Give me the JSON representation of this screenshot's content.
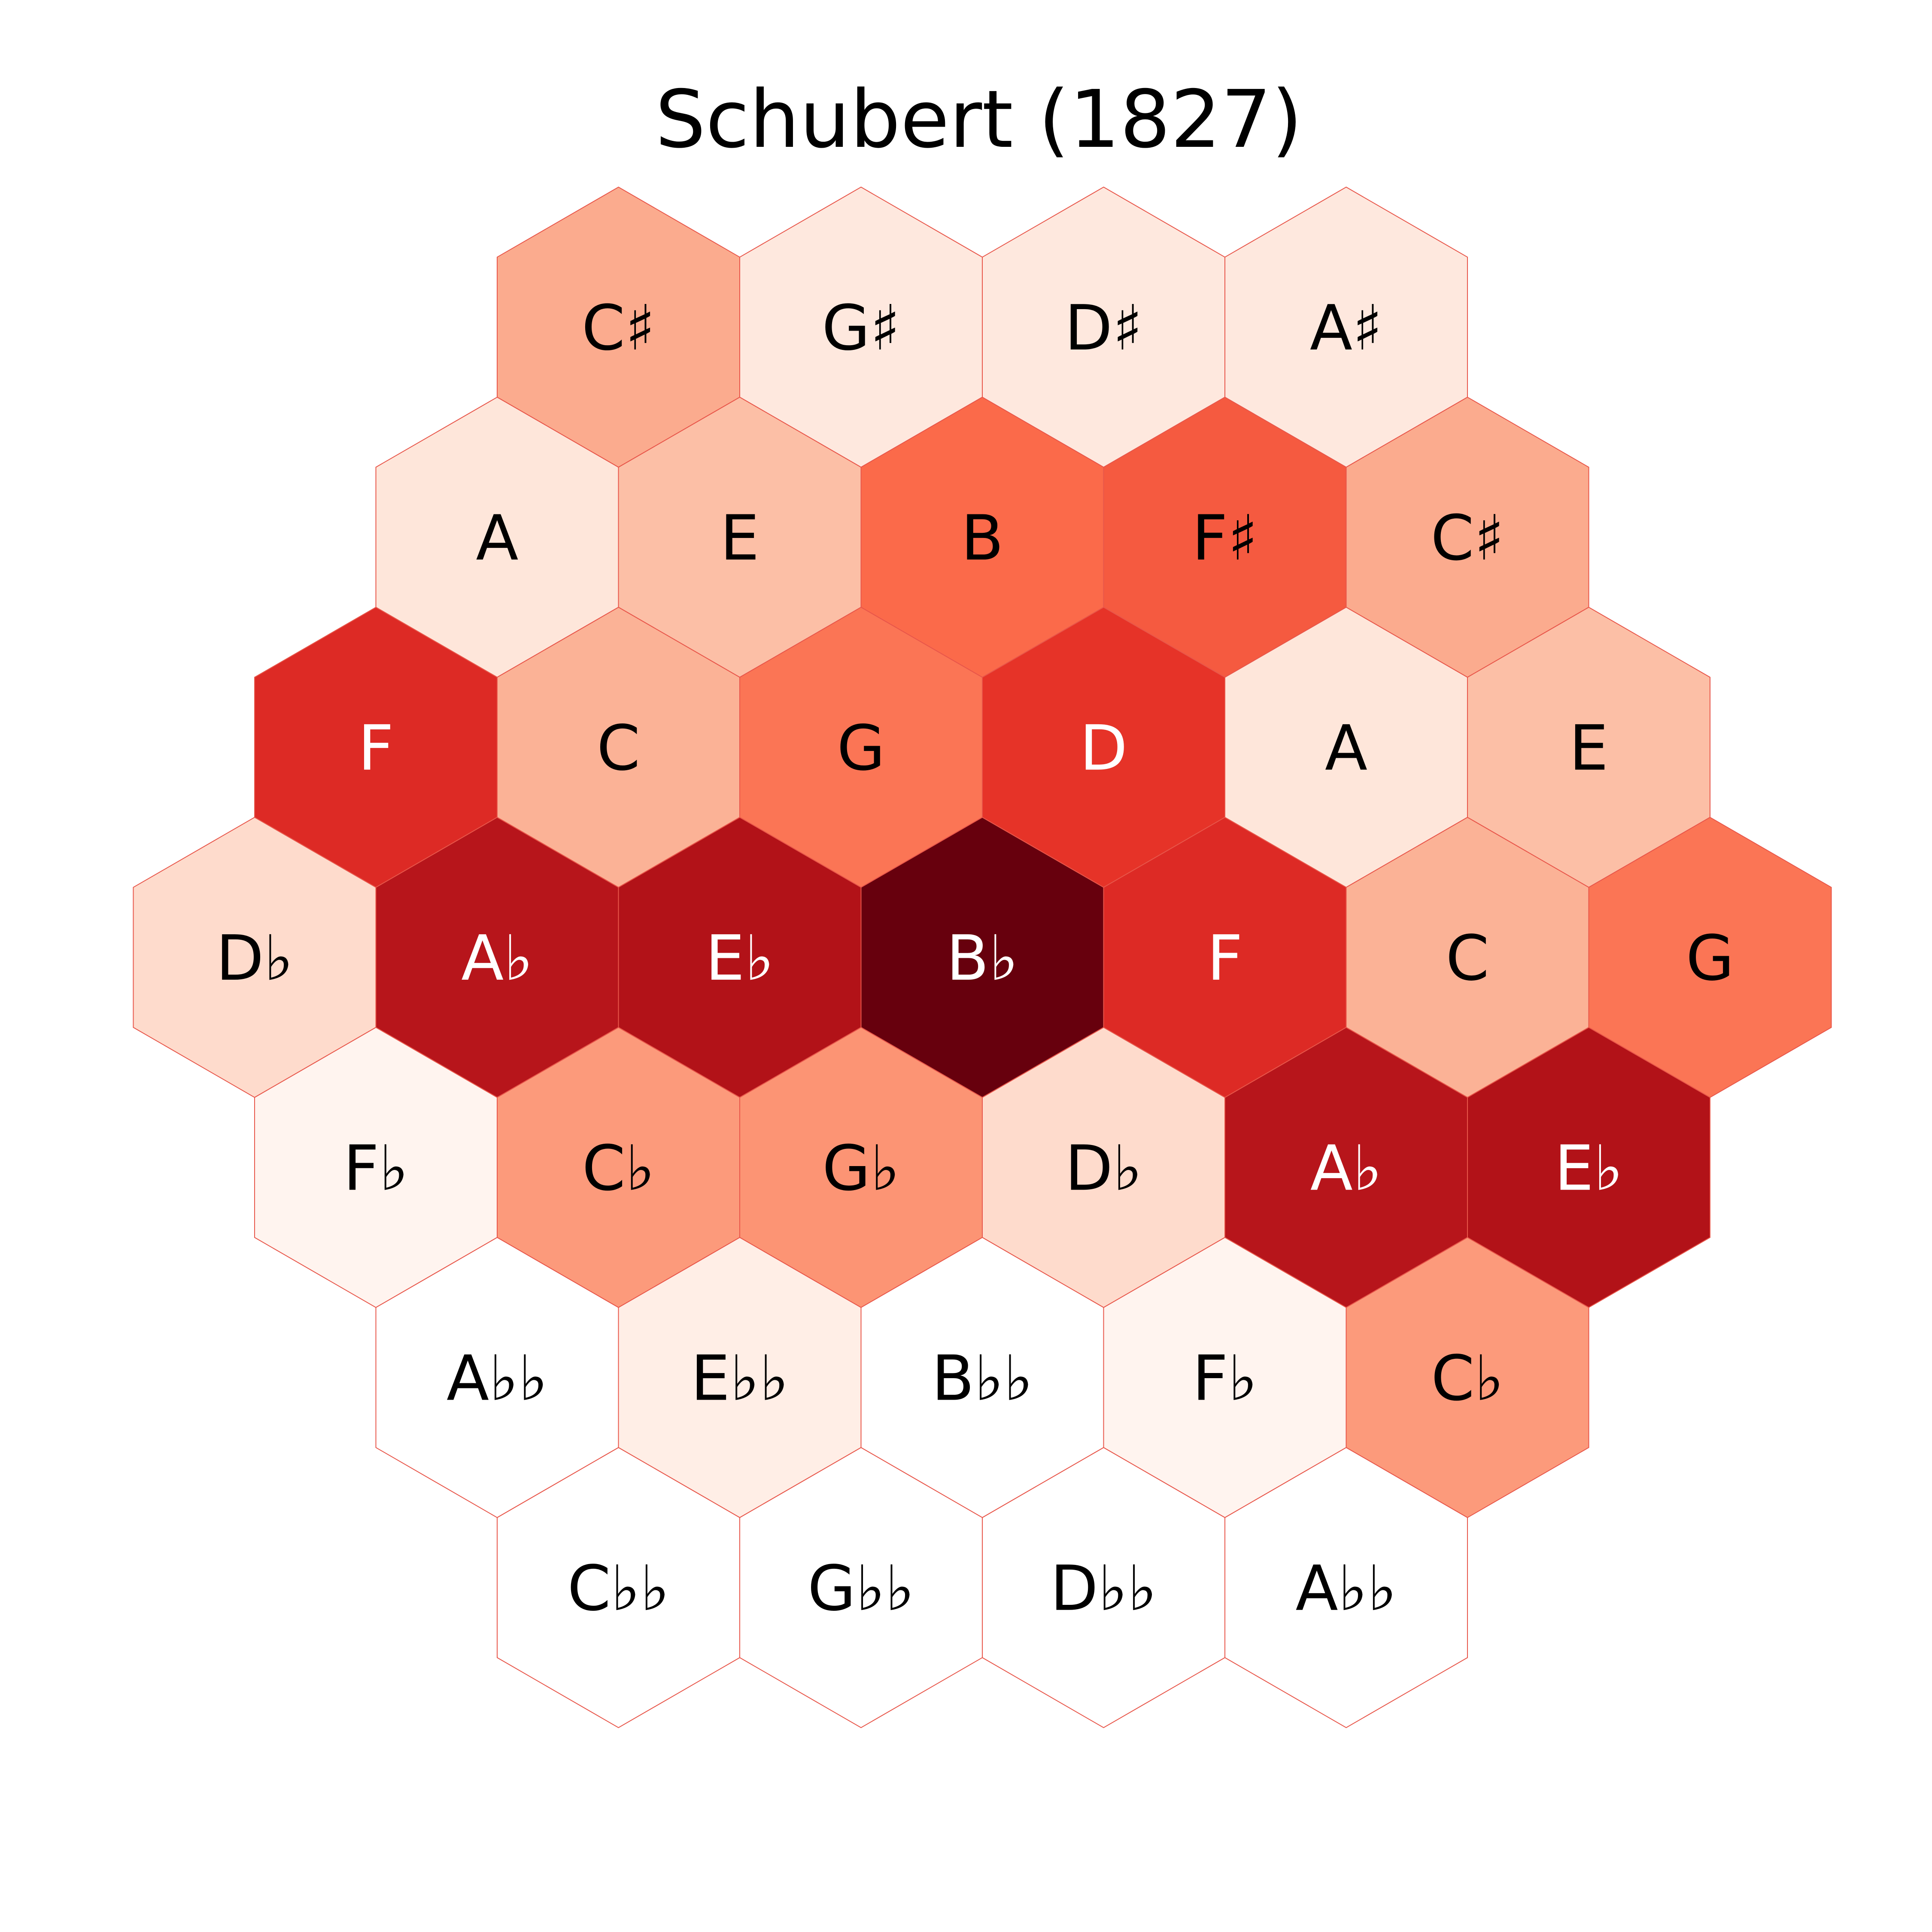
{
  "chart_data": {
    "type": "heatmap",
    "subtype": "tonnetz-hexagonal",
    "title": "Schubert (1827)",
    "colormap": "Reds",
    "grid": false,
    "legend": "none",
    "rows": [
      {
        "labels": [
          "C♯",
          "G♯",
          "D♯",
          "A♯"
        ],
        "colors": [
          "#fbab8e",
          "#fee8de",
          "#fee8de",
          "#fee8de"
        ]
      },
      {
        "labels": [
          "A",
          "E",
          "B",
          "F♯",
          "C♯"
        ],
        "colors": [
          "#fee6da",
          "#fcbfa6",
          "#fb6a4a",
          "#f55a40",
          "#fbab8e"
        ]
      },
      {
        "labels": [
          "F",
          "C",
          "G",
          "D",
          "A",
          "E"
        ],
        "colors": [
          "#dd2a25",
          "#fbb296",
          "#fb7555",
          "#e63328",
          "#fee6da",
          "#fcbfa6"
        ]
      },
      {
        "labels": [
          "D♭",
          "A♭",
          "E♭",
          "B♭",
          "F",
          "C",
          "G"
        ],
        "colors": [
          "#fedbcc",
          "#b7151b",
          "#b21218",
          "#67000d",
          "#dd2a25",
          "#fbb296",
          "#fb7555"
        ]
      },
      {
        "labels": [
          "F♭",
          "C♭",
          "G♭",
          "D♭",
          "A♭",
          "E♭"
        ],
        "colors": [
          "#fff4ef",
          "#fc9a7b",
          "#fc9474",
          "#fedbcc",
          "#b7151b",
          "#b21218"
        ]
      },
      {
        "labels": [
          "A♭♭",
          "E♭♭",
          "B♭♭",
          "F♭",
          "C♭"
        ],
        "colors": [
          "#ffffff",
          "#ffeee6",
          "#ffffff",
          "#fff4ef",
          "#fc9a7b"
        ]
      },
      {
        "labels": [
          "C♭♭",
          "G♭♭",
          "D♭♭",
          "A♭♭"
        ],
        "colors": [
          "#ffffff",
          "#ffffff",
          "#ffffff",
          "#ffffff"
        ]
      }
    ],
    "light_text_color": "#ffffff",
    "dark_text_color": "#000000",
    "edge_color": "#e8564a"
  }
}
